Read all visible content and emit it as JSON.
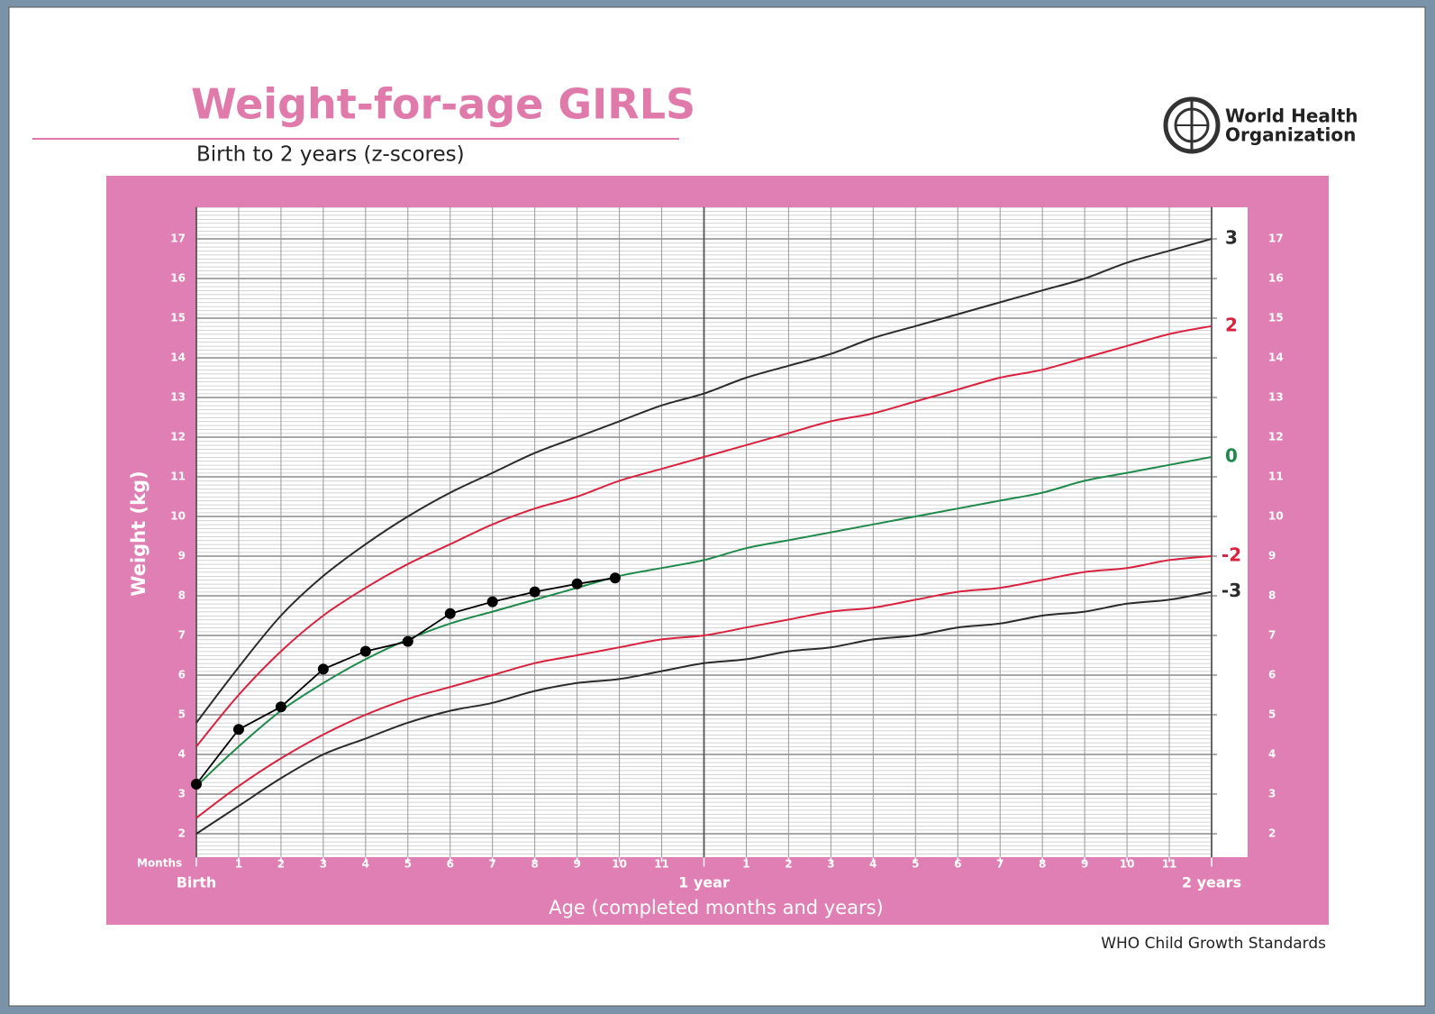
{
  "chart_data": {
    "type": "line",
    "title": "Weight-for-age GIRLS",
    "subtitle": "Birth to 2 years (z-scores)",
    "logo_text": [
      "World Health",
      "Organization"
    ],
    "footer": "WHO Child Growth Standards",
    "xlabel": "Age (completed months and years)",
    "ylabel": "Weight (kg)",
    "x_row_label": "Months",
    "x": [
      0,
      1,
      2,
      3,
      4,
      5,
      6,
      7,
      8,
      9,
      10,
      11,
      12,
      13,
      14,
      15,
      16,
      17,
      18,
      19,
      20,
      21,
      22,
      23,
      24
    ],
    "xlim": [
      0,
      24
    ],
    "xticks": [
      {
        "value": 0,
        "label": "Birth"
      },
      1,
      2,
      3,
      4,
      5,
      6,
      7,
      8,
      9,
      10,
      11,
      {
        "value": 12,
        "label": "1 year"
      },
      {
        "value": 13,
        "label": "1"
      },
      {
        "value": 14,
        "label": "2"
      },
      {
        "value": 15,
        "label": "3"
      },
      {
        "value": 16,
        "label": "4"
      },
      {
        "value": 17,
        "label": "5"
      },
      {
        "value": 18,
        "label": "6"
      },
      {
        "value": 19,
        "label": "7"
      },
      {
        "value": 20,
        "label": "8"
      },
      {
        "value": 21,
        "label": "9"
      },
      {
        "value": 22,
        "label": "10"
      },
      {
        "value": 23,
        "label": "11"
      },
      {
        "value": 24,
        "label": "2 years"
      }
    ],
    "ylim": [
      1.4,
      17.8
    ],
    "yticks": [
      2,
      3,
      4,
      5,
      6,
      7,
      8,
      9,
      10,
      11,
      12,
      13,
      14,
      15,
      16,
      17
    ],
    "grid": true,
    "series": [
      {
        "name": "3",
        "color": "#2b2b2b",
        "values": [
          4.8,
          6.2,
          7.5,
          8.5,
          9.3,
          10.0,
          10.6,
          11.1,
          11.6,
          12.0,
          12.4,
          12.8,
          13.1,
          13.5,
          13.8,
          14.1,
          14.5,
          14.8,
          15.1,
          15.4,
          15.7,
          16.0,
          16.4,
          16.7,
          17.0
        ]
      },
      {
        "name": "2",
        "color": "#d8223f",
        "values": [
          4.2,
          5.5,
          6.6,
          7.5,
          8.2,
          8.8,
          9.3,
          9.8,
          10.2,
          10.5,
          10.9,
          11.2,
          11.5,
          11.8,
          12.1,
          12.4,
          12.6,
          12.9,
          13.2,
          13.5,
          13.7,
          14.0,
          14.3,
          14.6,
          14.8
        ]
      },
      {
        "name": "0",
        "color": "#1f8a4c",
        "values": [
          3.2,
          4.2,
          5.1,
          5.8,
          6.4,
          6.9,
          7.3,
          7.6,
          7.9,
          8.2,
          8.5,
          8.7,
          8.9,
          9.2,
          9.4,
          9.6,
          9.8,
          10.0,
          10.2,
          10.4,
          10.6,
          10.9,
          11.1,
          11.3,
          11.5
        ]
      },
      {
        "name": "-2",
        "color": "#d8223f",
        "values": [
          2.4,
          3.2,
          3.9,
          4.5,
          5.0,
          5.4,
          5.7,
          6.0,
          6.3,
          6.5,
          6.7,
          6.9,
          7.0,
          7.2,
          7.4,
          7.6,
          7.7,
          7.9,
          8.1,
          8.2,
          8.4,
          8.6,
          8.7,
          8.9,
          9.0
        ]
      },
      {
        "name": "-3",
        "color": "#2b2b2b",
        "values": [
          2.0,
          2.7,
          3.4,
          4.0,
          4.4,
          4.8,
          5.1,
          5.3,
          5.6,
          5.8,
          5.9,
          6.1,
          6.3,
          6.4,
          6.6,
          6.7,
          6.9,
          7.0,
          7.2,
          7.3,
          7.5,
          7.6,
          7.8,
          7.9,
          8.1
        ]
      },
      {
        "color": "#000000",
        "markers": true,
        "x": [
          0,
          1,
          2,
          3,
          4,
          5,
          6,
          7,
          8,
          9,
          9.9
        ],
        "values": [
          3.25,
          4.63,
          5.2,
          6.15,
          6.6,
          6.85,
          7.55,
          7.85,
          8.1,
          8.3,
          8.45
        ]
      }
    ]
  }
}
